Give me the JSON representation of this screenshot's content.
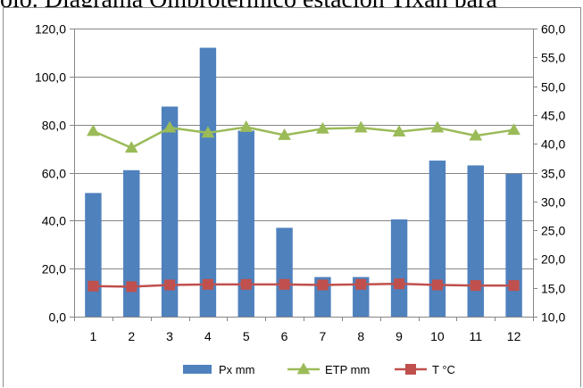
{
  "header_text": "olo. Diagrama Ombrotérmico estación Tixán pará",
  "chart_data": {
    "type": "bar",
    "categories": [
      "1",
      "2",
      "3",
      "4",
      "5",
      "6",
      "7",
      "8",
      "9",
      "10",
      "11",
      "12"
    ],
    "series": [
      {
        "name": "Px mm",
        "kind": "bar",
        "axis": "left",
        "color": "#4f81bd",
        "values": [
          51.5,
          61.0,
          87.5,
          112.0,
          77.5,
          37.0,
          16.5,
          16.5,
          40.5,
          65.0,
          63.0,
          59.5
        ]
      },
      {
        "name": "ETP mm",
        "kind": "line",
        "axis": "right",
        "color": "#9bbb59",
        "marker": "triangle",
        "values": [
          42.2,
          39.3,
          42.8,
          41.9,
          42.9,
          41.5,
          42.6,
          42.8,
          42.1,
          42.8,
          41.4,
          42.4
        ]
      },
      {
        "name": "T °C",
        "kind": "line",
        "axis": "right",
        "color": "#c0504d",
        "marker": "square",
        "values": [
          15.3,
          15.2,
          15.5,
          15.6,
          15.6,
          15.6,
          15.5,
          15.6,
          15.7,
          15.5,
          15.4,
          15.4
        ]
      }
    ],
    "yaxis_left": {
      "ylim": [
        0,
        120
      ],
      "ticks": [
        "0,0",
        "20,0",
        "40,0",
        "60,0",
        "80,0",
        "100,0",
        "120,0"
      ]
    },
    "yaxis_right": {
      "ylim": [
        10,
        60
      ],
      "ticks": [
        "10,0",
        "15,0",
        "20,0",
        "25,0",
        "30,0",
        "35,0",
        "40,0",
        "45,0",
        "50,0",
        "55,0",
        "60,0"
      ]
    },
    "grid": true,
    "legend_position": "bottom",
    "title": "",
    "xlabel": "",
    "ylabel": ""
  }
}
